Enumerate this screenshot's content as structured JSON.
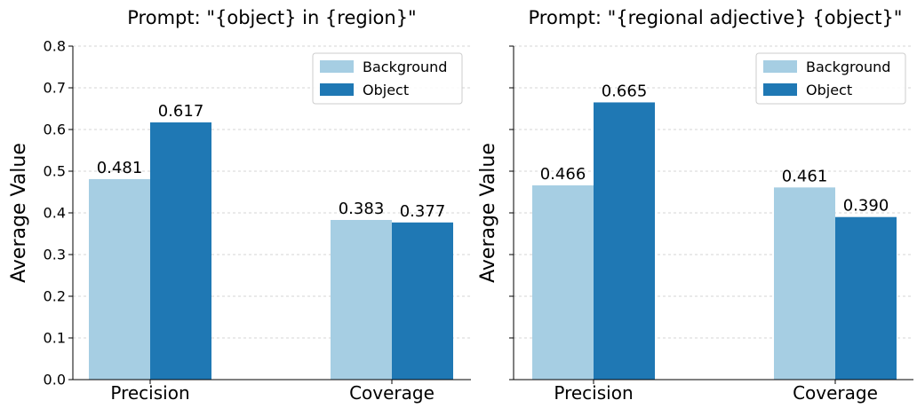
{
  "chart_data": [
    {
      "type": "bar",
      "title": "Prompt: \"{object} in {region}\"",
      "xlabel": "",
      "ylabel": "Average Value",
      "ylim": [
        0,
        0.8
      ],
      "yticks": [
        "0.0",
        "0.1",
        "0.2",
        "0.3",
        "0.4",
        "0.5",
        "0.6",
        "0.7",
        "0.8"
      ],
      "show_ytick_labels": true,
      "grid": "y-dashed",
      "legend": "top-right",
      "categories": [
        "Precision",
        "Coverage"
      ],
      "series": [
        {
          "name": "Background",
          "color": "#a6cee3",
          "values": [
            0.481,
            0.383
          ],
          "labels": [
            "0.481",
            "0.383"
          ]
        },
        {
          "name": "Object",
          "color": "#1f78b4",
          "values": [
            0.617,
            0.377
          ],
          "labels": [
            "0.617",
            "0.377"
          ]
        }
      ]
    },
    {
      "type": "bar",
      "title": "Prompt: \"{regional adjective} {object}\"",
      "xlabel": "",
      "ylabel": "Average Value",
      "ylim": [
        0,
        0.8
      ],
      "yticks": [
        "0.0",
        "0.1",
        "0.2",
        "0.3",
        "0.4",
        "0.5",
        "0.6",
        "0.7",
        "0.8"
      ],
      "show_ytick_labels": false,
      "grid": "y-dashed",
      "legend": "top-right",
      "categories": [
        "Precision",
        "Coverage"
      ],
      "series": [
        {
          "name": "Background",
          "color": "#a6cee3",
          "values": [
            0.466,
            0.461
          ],
          "labels": [
            "0.466",
            "0.461"
          ]
        },
        {
          "name": "Object",
          "color": "#1f78b4",
          "values": [
            0.665,
            0.39
          ],
          "labels": [
            "0.665",
            "0.390"
          ]
        }
      ]
    }
  ]
}
